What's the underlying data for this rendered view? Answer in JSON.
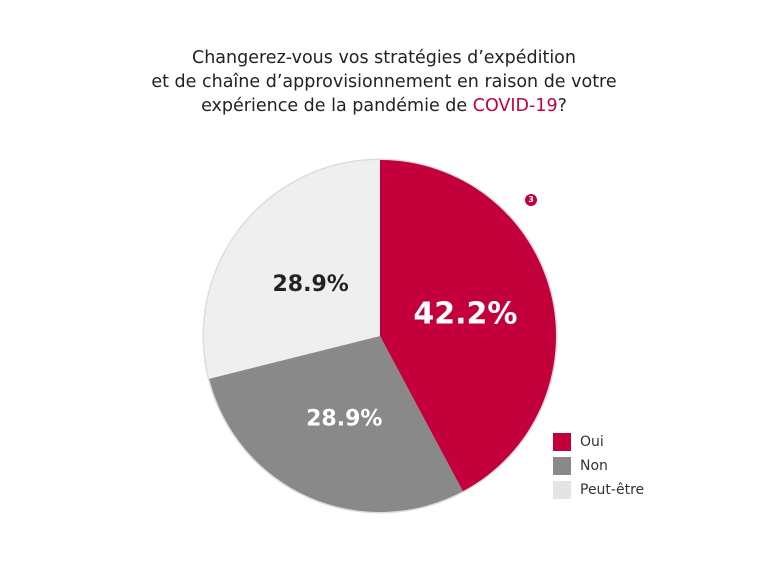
{
  "title": {
    "line1": "Changerez-vous vos stratégies d’expédition",
    "line2": "et de chaîne d’approvisionnement en raison de votre",
    "line3_pre": "expérience de la pandémie de ",
    "line3_highlight": "COVID-19",
    "line3_post": "?"
  },
  "footnote_badge": "3",
  "chart_data": {
    "type": "pie",
    "start": "top",
    "direction": "clockwise",
    "slices": [
      {
        "label": "Oui",
        "value": 42.2,
        "data_label": "42.2%",
        "color": "#c4003c",
        "label_color": "#ffffff"
      },
      {
        "label": "Non",
        "value": 28.9,
        "data_label": "28.9%",
        "color": "#898989",
        "label_color": "#ffffff"
      },
      {
        "label": "Peut-être",
        "value": 28.9,
        "data_label": "28.9%",
        "color": "#efefef",
        "label_color": "#222222"
      }
    ],
    "legend_placement": "bottom-right",
    "border_color": "#dddddd"
  }
}
